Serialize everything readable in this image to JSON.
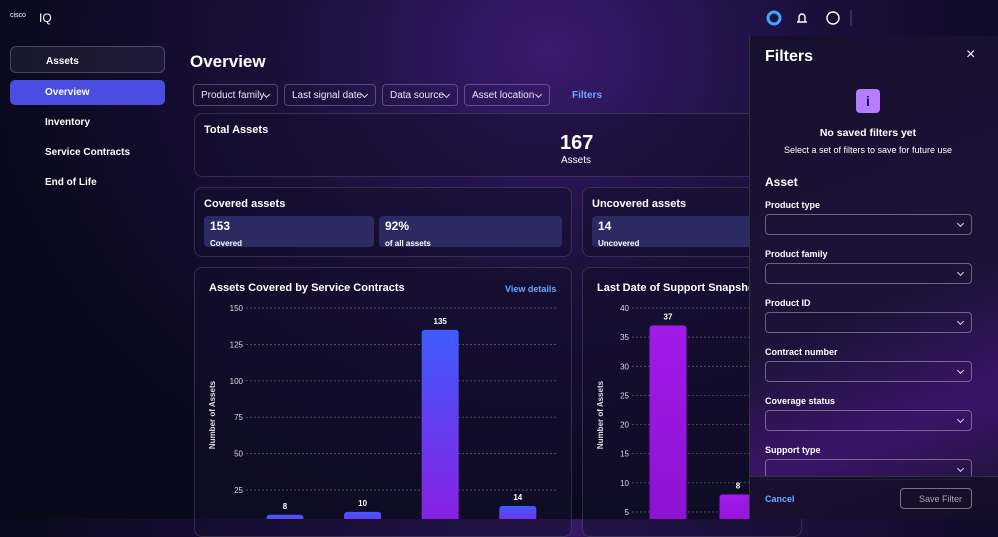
{
  "header": {
    "brand": "cisco",
    "product": "IQ"
  },
  "sidebar": {
    "section": "Assets",
    "items": [
      "Overview",
      "Inventory",
      "Service Contracts",
      "End of Life"
    ]
  },
  "overview": {
    "title": "Overview",
    "filters": [
      "Product family",
      "Last signal date",
      "Data source",
      "Asset location"
    ],
    "filters_button": "Filters",
    "total": {
      "title": "Total Assets",
      "value": "167",
      "unit": "Assets"
    },
    "covered": {
      "title": "Covered assets",
      "count": "153",
      "count_label": "Covered",
      "share": "92%",
      "share_label": "of all assets"
    },
    "uncovered": {
      "title": "Uncovered assets",
      "count": "14",
      "count_label": "Uncovered"
    }
  },
  "chart_data": [
    {
      "type": "bar",
      "title": "Assets Covered by Service Contracts",
      "link": "View details",
      "y_label": "Number of Assets",
      "values": [
        8,
        10,
        135,
        14
      ],
      "ylim": [
        0,
        150
      ],
      "yticks": [
        25,
        50,
        75,
        100,
        125,
        150
      ],
      "grid": true,
      "color": "#3f5bff",
      "gradient_to": "#8b1fe0"
    },
    {
      "type": "bar",
      "title": "Last Date of Support Snapshot",
      "y_label": "Number of Assets",
      "values": [
        37,
        8
      ],
      "ylim": [
        0,
        40
      ],
      "yticks": [
        5,
        10,
        15,
        20,
        25,
        30,
        35,
        40
      ],
      "grid": true,
      "color": "#a21ae8",
      "gradient_to": "#8a12d0"
    }
  ],
  "filters_panel": {
    "title": "Filters",
    "empty_title": "No saved filters yet",
    "empty_text": "Select a set of filters to save for future use",
    "section": "Asset",
    "fields": [
      "Product type",
      "Product family",
      "Product ID",
      "Contract number",
      "Coverage status",
      "Support type"
    ],
    "cancel": "Cancel",
    "save": "Save Filter"
  }
}
